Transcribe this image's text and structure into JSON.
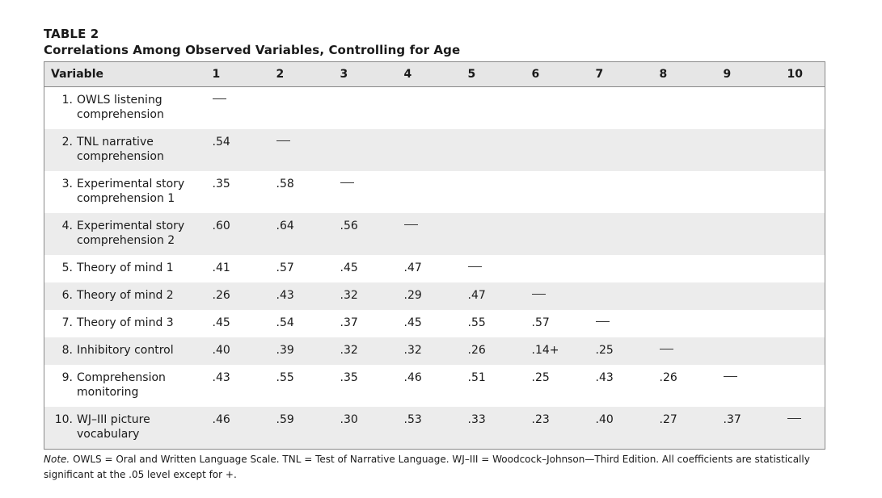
{
  "table_label": "TABLE 2",
  "table_title": "Correlations Among Observed Variables, Controlling for Age",
  "headers": [
    "Variable",
    "1",
    "2",
    "3",
    "4",
    "5",
    "6",
    "7",
    "8",
    "9",
    "10"
  ],
  "rows": [
    {
      "num": "1.",
      "name": "OWLS listening comprehension",
      "lines": [
        "OWLS listening",
        "comprehension"
      ],
      "values": [
        "—",
        "",
        "",
        "",
        "",
        "",
        "",
        "",
        "",
        ""
      ]
    },
    {
      "num": "2.",
      "name": "TNL narrative comprehension",
      "lines": [
        "TNL narrative",
        "comprehension"
      ],
      "values": [
        ".54",
        "—",
        "",
        "",
        "",
        "",
        "",
        "",
        "",
        ""
      ]
    },
    {
      "num": "3.",
      "name": "Experimental story comprehension 1",
      "lines": [
        "Experimental story",
        "comprehension 1"
      ],
      "values": [
        ".35",
        ".58",
        "—",
        "",
        "",
        "",
        "",
        "",
        "",
        ""
      ]
    },
    {
      "num": "4.",
      "name": "Experimental story comprehension 2",
      "lines": [
        "Experimental story",
        "comprehension 2"
      ],
      "values": [
        ".60",
        ".64",
        ".56",
        "—",
        "",
        "",
        "",
        "",
        "",
        ""
      ]
    },
    {
      "num": "5.",
      "name": "Theory of mind 1",
      "lines": [
        "Theory of mind 1"
      ],
      "values": [
        ".41",
        ".57",
        ".45",
        ".47",
        "—",
        "",
        "",
        "",
        "",
        ""
      ]
    },
    {
      "num": "6.",
      "name": "Theory of mind 2",
      "lines": [
        "Theory of mind 2"
      ],
      "values": [
        ".26",
        ".43",
        ".32",
        ".29",
        ".47",
        "—",
        "",
        "",
        "",
        ""
      ]
    },
    {
      "num": "7.",
      "name": "Theory of mind 3",
      "lines": [
        "Theory of mind 3"
      ],
      "values": [
        ".45",
        ".54",
        ".37",
        ".45",
        ".55",
        ".57",
        "—",
        "",
        "",
        ""
      ]
    },
    {
      "num": "8.",
      "name": "Inhibitory control",
      "lines": [
        "Inhibitory control"
      ],
      "values": [
        ".40",
        ".39",
        ".32",
        ".32",
        ".26",
        ".14+",
        ".25",
        "—",
        "",
        ""
      ]
    },
    {
      "num": "9.",
      "name": "Comprehension monitoring",
      "lines": [
        "Comprehension",
        "monitoring"
      ],
      "values": [
        ".43",
        ".55",
        ".35",
        ".46",
        ".51",
        ".25",
        ".43",
        ".26",
        "—",
        ""
      ]
    },
    {
      "num": "10.",
      "name": "WJ–III picture vocabulary",
      "lines": [
        "WJ–III picture",
        "vocabulary"
      ],
      "values": [
        ".46",
        ".59",
        ".30",
        ".53",
        ".33",
        ".23",
        ".40",
        ".27",
        ".37",
        "—"
      ]
    }
  ],
  "note": {
    "label": "Note.",
    "text": "OWLS = Oral and Written Language Scale. TNL = Test of Narrative Language. WJ–III = Woodcock–Johnson—Third Edition. All coefficients are statistically significant at the .05 level except for +."
  }
}
